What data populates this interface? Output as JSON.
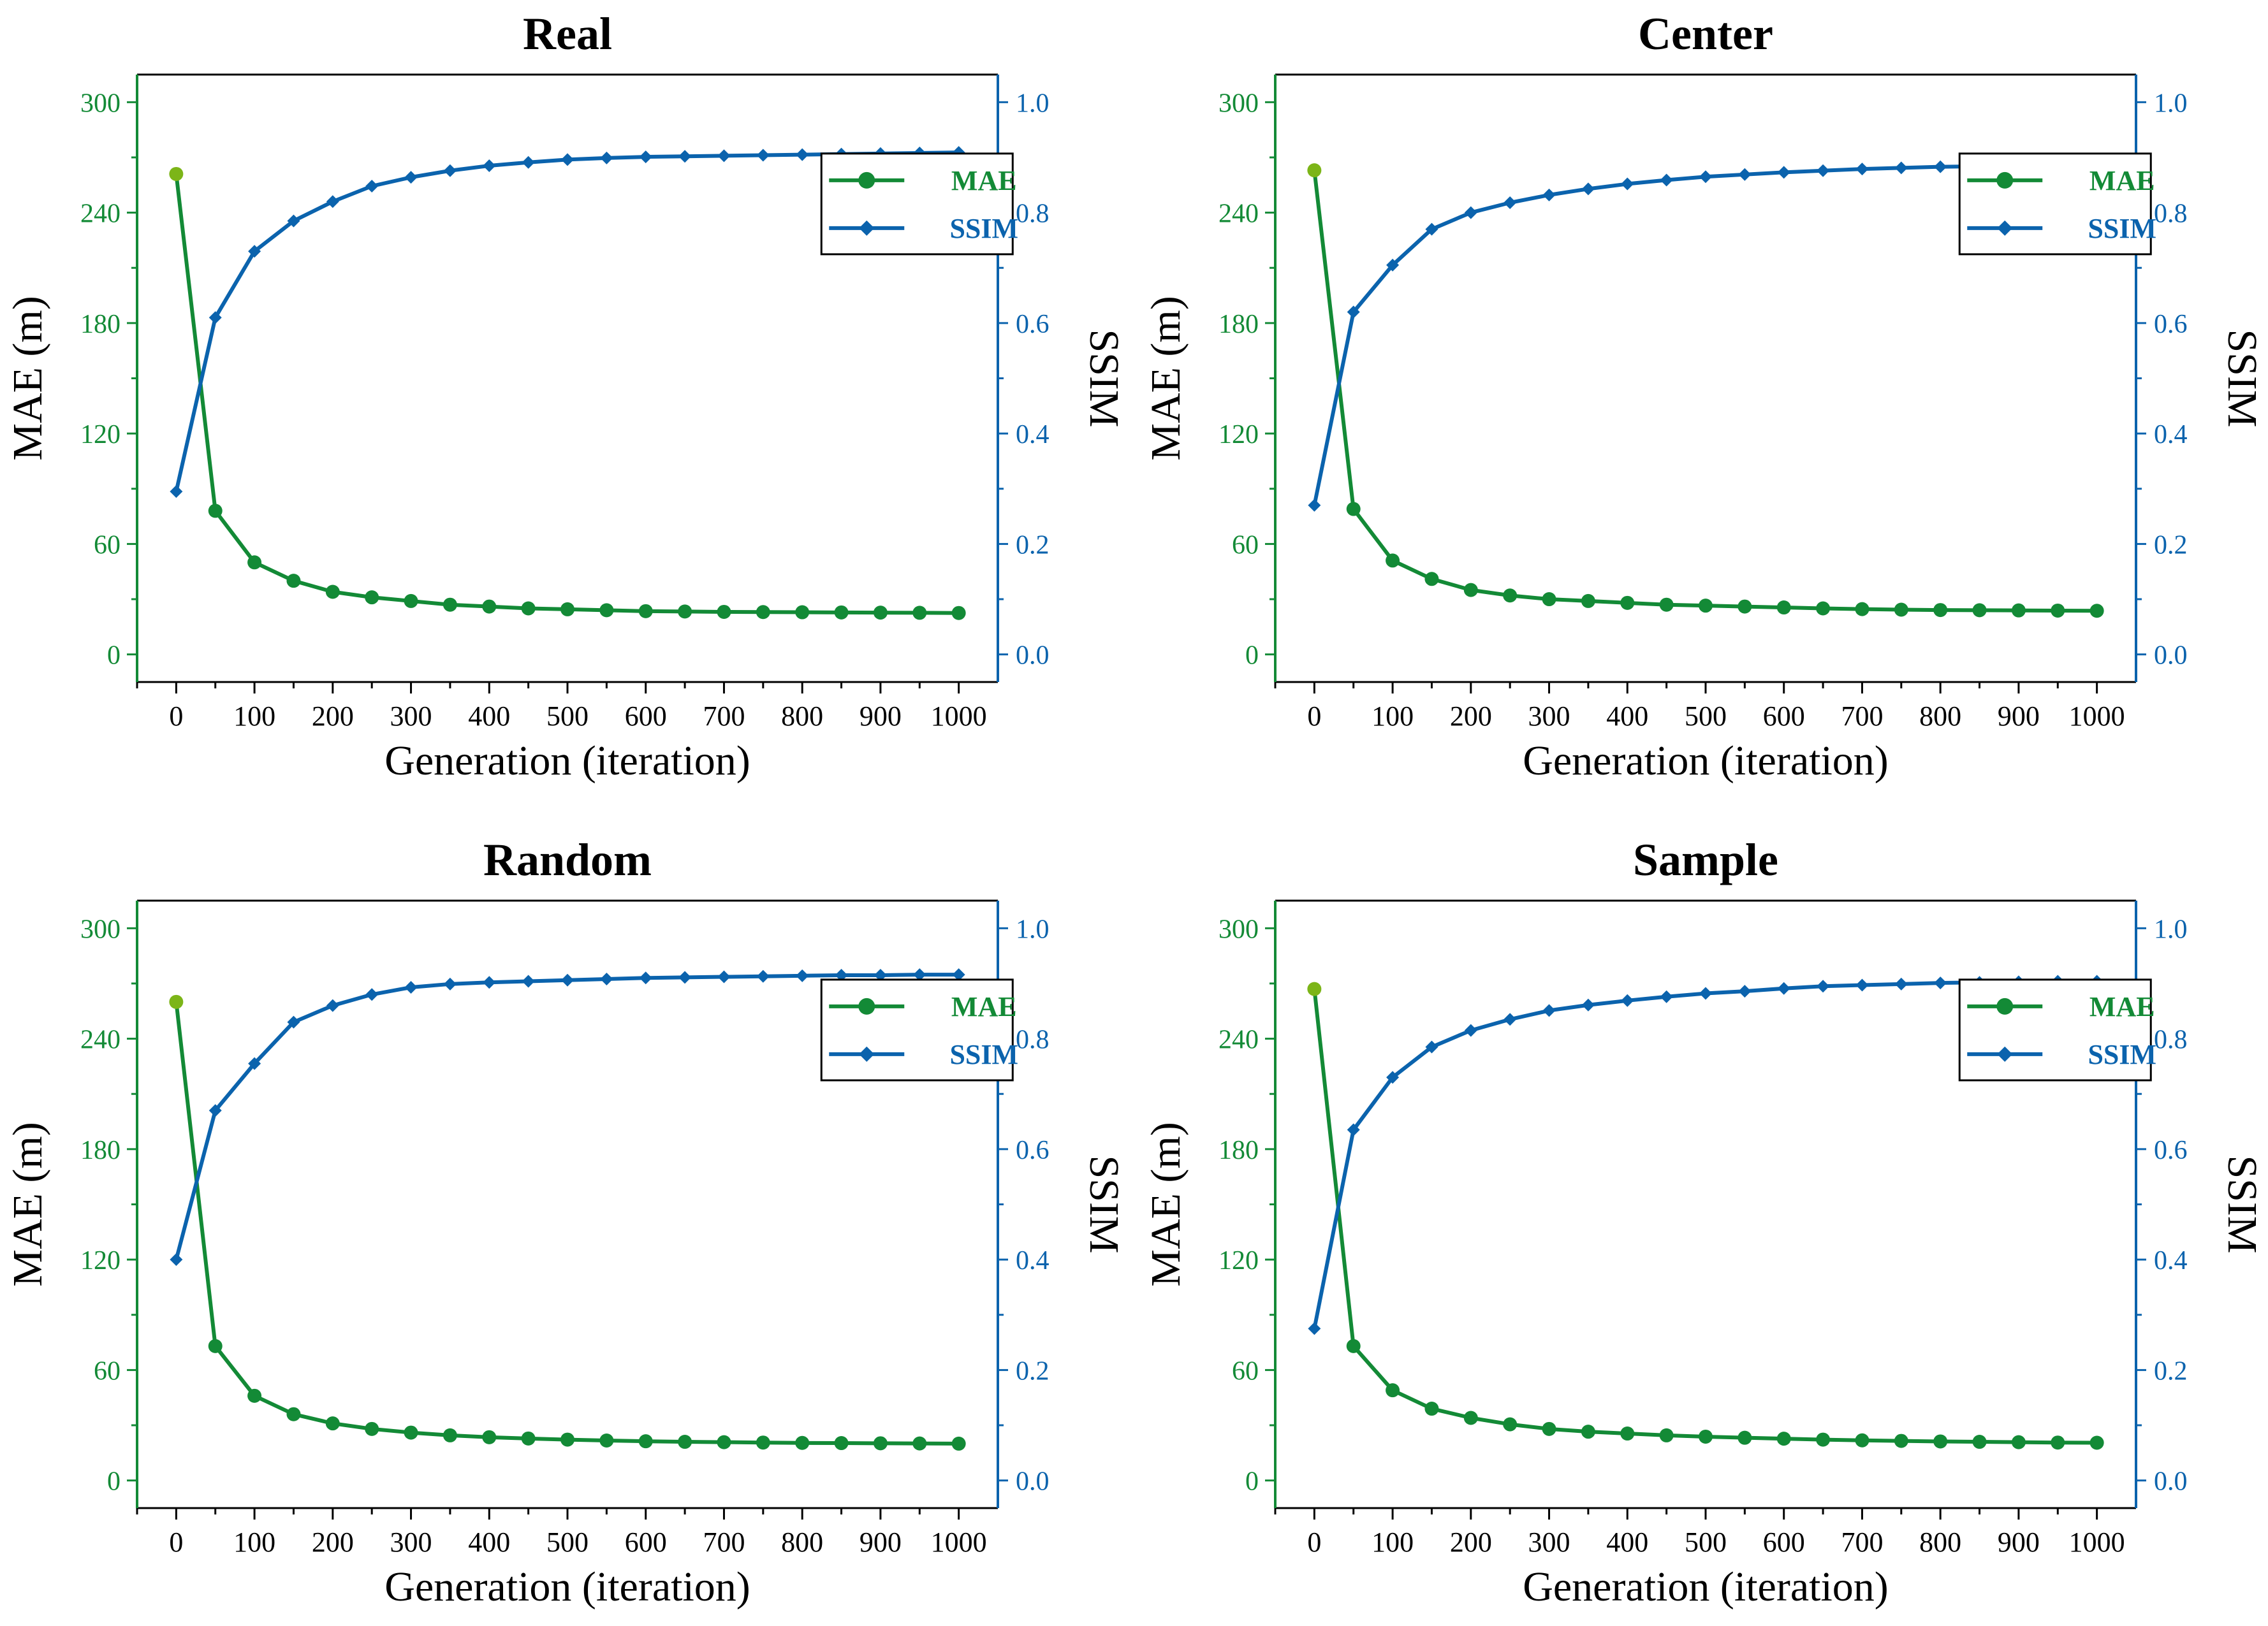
{
  "colors": {
    "mae": "#138a36",
    "ssim": "#0b63ad",
    "axis": "#000000",
    "mae_first": "#7cb518"
  },
  "chart_data": [
    {
      "type": "line",
      "title": "Real",
      "xlabel": "Generation (iteration)",
      "ylabel_left": "MAE (m)",
      "ylabel_right": "SSIM",
      "xlim": [
        -50,
        1050
      ],
      "xticks": [
        0,
        100,
        200,
        300,
        400,
        500,
        600,
        700,
        800,
        900,
        1000
      ],
      "ylim_left": [
        -15,
        315
      ],
      "yticks_left": [
        0,
        60,
        120,
        180,
        240,
        300
      ],
      "ylim_right": [
        -0.05,
        1.05
      ],
      "yticks_right": [
        "0.0",
        "0.2",
        "0.4",
        "0.6",
        "0.8",
        "1.0"
      ],
      "legend": [
        "MAE",
        "SSIM"
      ],
      "legend_position": "center-right",
      "x": [
        0,
        50,
        100,
        150,
        200,
        250,
        300,
        350,
        400,
        450,
        500,
        550,
        600,
        650,
        700,
        750,
        800,
        850,
        900,
        950,
        1000
      ],
      "series": [
        {
          "name": "MAE",
          "axis": "left",
          "marker": "circle",
          "values": [
            261,
            78,
            50,
            40,
            34,
            31,
            29,
            27,
            26,
            25,
            24.5,
            24,
            23.5,
            23.3,
            23.1,
            23,
            22.9,
            22.8,
            22.7,
            22.6,
            22.5
          ]
        },
        {
          "name": "SSIM",
          "axis": "right",
          "marker": "diamond",
          "values": [
            0.295,
            0.61,
            0.73,
            0.785,
            0.82,
            0.848,
            0.864,
            0.876,
            0.885,
            0.891,
            0.896,
            0.899,
            0.901,
            0.902,
            0.903,
            0.904,
            0.905,
            0.906,
            0.907,
            0.908,
            0.909
          ]
        }
      ]
    },
    {
      "type": "line",
      "title": "Center",
      "xlabel": "Generation (iteration)",
      "ylabel_left": "MAE (m)",
      "ylabel_right": "SSIM",
      "xlim": [
        -50,
        1050
      ],
      "xticks": [
        0,
        100,
        200,
        300,
        400,
        500,
        600,
        700,
        800,
        900,
        1000
      ],
      "ylim_left": [
        -15,
        315
      ],
      "yticks_left": [
        0,
        60,
        120,
        180,
        240,
        300
      ],
      "ylim_right": [
        -0.05,
        1.05
      ],
      "yticks_right": [
        "0.0",
        "0.2",
        "0.4",
        "0.6",
        "0.8",
        "1.0"
      ],
      "legend": [
        "MAE",
        "SSIM"
      ],
      "legend_position": "center-right",
      "x": [
        0,
        50,
        100,
        150,
        200,
        250,
        300,
        350,
        400,
        450,
        500,
        550,
        600,
        650,
        700,
        750,
        800,
        850,
        900,
        950,
        1000
      ],
      "series": [
        {
          "name": "MAE",
          "axis": "left",
          "marker": "circle",
          "values": [
            263,
            79,
            51,
            41,
            35,
            32,
            30,
            29,
            28,
            27,
            26.5,
            26,
            25.5,
            25,
            24.6,
            24.3,
            24.1,
            24,
            23.9,
            23.8,
            23.7
          ]
        },
        {
          "name": "SSIM",
          "axis": "right",
          "marker": "diamond",
          "values": [
            0.27,
            0.62,
            0.705,
            0.77,
            0.8,
            0.818,
            0.832,
            0.843,
            0.852,
            0.859,
            0.865,
            0.869,
            0.873,
            0.876,
            0.879,
            0.881,
            0.883,
            0.884,
            0.885,
            0.886,
            0.887
          ]
        }
      ]
    },
    {
      "type": "line",
      "title": "Random",
      "xlabel": "Generation (iteration)",
      "ylabel_left": "MAE (m)",
      "ylabel_right": "SSIM",
      "xlim": [
        -50,
        1050
      ],
      "xticks": [
        0,
        100,
        200,
        300,
        400,
        500,
        600,
        700,
        800,
        900,
        1000
      ],
      "ylim_left": [
        -15,
        315
      ],
      "yticks_left": [
        0,
        60,
        120,
        180,
        240,
        300
      ],
      "ylim_right": [
        -0.05,
        1.05
      ],
      "yticks_right": [
        "0.0",
        "0.2",
        "0.4",
        "0.6",
        "0.8",
        "1.0"
      ],
      "legend": [
        "MAE",
        "SSIM"
      ],
      "legend_position": "center-right",
      "x": [
        0,
        50,
        100,
        150,
        200,
        250,
        300,
        350,
        400,
        450,
        500,
        550,
        600,
        650,
        700,
        750,
        800,
        850,
        900,
        950,
        1000
      ],
      "series": [
        {
          "name": "MAE",
          "axis": "left",
          "marker": "circle",
          "values": [
            260,
            73,
            46,
            36,
            31,
            28,
            26,
            24.5,
            23.5,
            22.8,
            22.2,
            21.7,
            21.3,
            21,
            20.8,
            20.6,
            20.4,
            20.3,
            20.2,
            20.1,
            20
          ]
        },
        {
          "name": "SSIM",
          "axis": "right",
          "marker": "diamond",
          "values": [
            0.4,
            0.67,
            0.755,
            0.83,
            0.86,
            0.88,
            0.893,
            0.899,
            0.902,
            0.904,
            0.906,
            0.908,
            0.91,
            0.911,
            0.912,
            0.913,
            0.914,
            0.915,
            0.915,
            0.916,
            0.916
          ]
        }
      ]
    },
    {
      "type": "line",
      "title": "Sample",
      "xlabel": "Generation (iteration)",
      "ylabel_left": "MAE (m)",
      "ylabel_right": "SSIM",
      "xlim": [
        -50,
        1050
      ],
      "xticks": [
        0,
        100,
        200,
        300,
        400,
        500,
        600,
        700,
        800,
        900,
        1000
      ],
      "ylim_left": [
        -15,
        315
      ],
      "yticks_left": [
        0,
        60,
        120,
        180,
        240,
        300
      ],
      "ylim_right": [
        -0.05,
        1.05
      ],
      "yticks_right": [
        "0.0",
        "0.2",
        "0.4",
        "0.6",
        "0.8",
        "1.0"
      ],
      "legend": [
        "MAE",
        "SSIM"
      ],
      "legend_position": "center-right",
      "x": [
        0,
        50,
        100,
        150,
        200,
        250,
        300,
        350,
        400,
        450,
        500,
        550,
        600,
        650,
        700,
        750,
        800,
        850,
        900,
        950,
        1000
      ],
      "series": [
        {
          "name": "MAE",
          "axis": "left",
          "marker": "circle",
          "values": [
            267,
            73,
            49,
            39,
            34,
            30.5,
            28,
            26.5,
            25.5,
            24.5,
            23.8,
            23.2,
            22.7,
            22.2,
            21.8,
            21.5,
            21.2,
            21,
            20.8,
            20.6,
            20.5
          ]
        },
        {
          "name": "SSIM",
          "axis": "right",
          "marker": "diamond",
          "values": [
            0.275,
            0.635,
            0.73,
            0.785,
            0.815,
            0.835,
            0.851,
            0.861,
            0.869,
            0.876,
            0.882,
            0.886,
            0.891,
            0.895,
            0.897,
            0.899,
            0.901,
            0.902,
            0.903,
            0.904,
            0.904
          ]
        }
      ]
    }
  ]
}
